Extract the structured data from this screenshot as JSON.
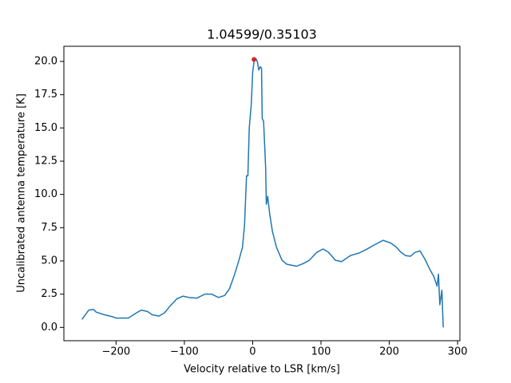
{
  "chart_data": {
    "type": "line",
    "title": "1.04599/0.35103",
    "xlabel": "Velocity relative to LSR [km/s]",
    "ylabel": "Uncalibrated antenna temperature [K]",
    "x": [
      -250,
      -240,
      -233,
      -229,
      -217,
      -205,
      -200,
      -188,
      -182,
      -170,
      -163,
      -154,
      -147,
      -137,
      -129,
      -121,
      -111,
      -102,
      -93,
      -82,
      -70,
      -60,
      -50,
      -41,
      -34,
      -27,
      -21,
      -15,
      -12,
      -9,
      -7,
      -5,
      -2,
      0,
      2,
      5,
      7,
      9,
      11,
      13,
      14,
      16,
      19,
      20,
      22,
      25,
      29,
      35,
      43,
      50,
      64,
      74,
      83,
      94,
      103,
      111,
      121,
      130,
      143,
      156,
      166,
      178,
      191,
      202,
      210,
      217,
      224,
      231,
      238,
      245,
      252,
      260,
      265,
      270,
      272,
      274,
      277,
      279
    ],
    "series": [
      {
        "color": "#1f77b4",
        "values": [
          0.6,
          1.3,
          1.35,
          1.15,
          0.95,
          0.8,
          0.7,
          0.7,
          0.7,
          1.1,
          1.3,
          1.2,
          0.95,
          0.85,
          1.1,
          1.6,
          2.15,
          2.35,
          2.25,
          2.2,
          2.5,
          2.5,
          2.25,
          2.4,
          2.9,
          3.9,
          4.9,
          6.0,
          7.6,
          11.4,
          11.4,
          15.0,
          16.8,
          19.2,
          20.0,
          20.2,
          19.95,
          19.35,
          19.6,
          19.5,
          15.7,
          15.5,
          12.0,
          9.25,
          9.85,
          8.5,
          7.2,
          6.0,
          5.05,
          4.75,
          4.6,
          4.8,
          5.05,
          5.65,
          5.9,
          5.65,
          5.05,
          4.95,
          5.4,
          5.6,
          5.85,
          6.2,
          6.55,
          6.35,
          6.05,
          5.65,
          5.4,
          5.35,
          5.65,
          5.75,
          5.15,
          4.3,
          3.85,
          3.1,
          4.0,
          1.7,
          2.8,
          0.0
        ]
      }
    ],
    "peak": {
      "x": 2,
      "y": 20.15,
      "color": "#d62728"
    },
    "xlim": [
      -276.4,
      303.4
    ],
    "ylim": [
      -1.0,
      21.14
    ],
    "xticks": [
      {
        "value": -200,
        "label": "−200"
      },
      {
        "value": -100,
        "label": "−100"
      },
      0,
      100,
      200,
      300
    ],
    "yticks": [
      {
        "value": 0,
        "label": "0.0"
      },
      2.5,
      {
        "value": 5,
        "label": "5.0"
      },
      7.5,
      {
        "value": 10,
        "label": "10.0"
      },
      12.5,
      {
        "value": 15,
        "label": "15.0"
      },
      17.5,
      {
        "value": 20,
        "label": "20.0"
      }
    ]
  }
}
